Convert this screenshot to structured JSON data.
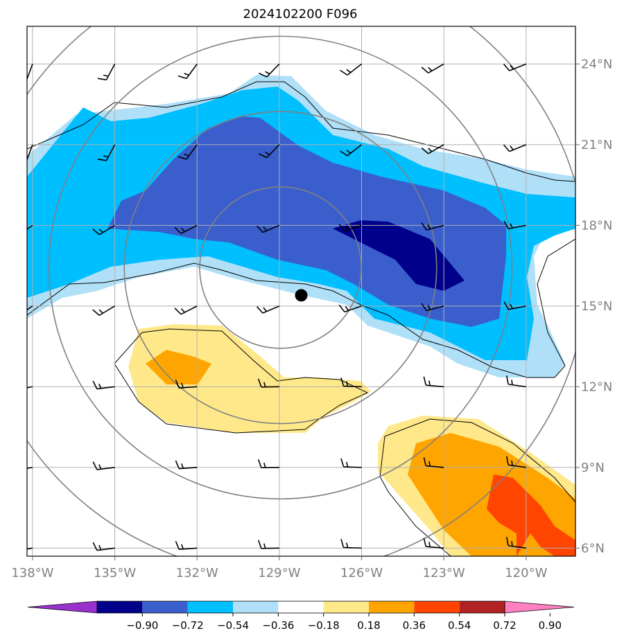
{
  "chart_data": {
    "type": "heatmap",
    "title": "2024102200 F096",
    "x_ticks": [
      "138°W",
      "135°W",
      "132°W",
      "129°W",
      "126°W",
      "123°W",
      "120°W"
    ],
    "y_ticks": [
      "24°N",
      "21°N",
      "18°N",
      "15°N",
      "12°N",
      "9°N",
      "6°N"
    ],
    "x_tick_values": [
      -138,
      -135,
      -132,
      -129,
      -126,
      -123,
      -120
    ],
    "y_tick_values": [
      24,
      21,
      18,
      15,
      12,
      9,
      6
    ],
    "xlim": [
      -138.2,
      -118.2
    ],
    "ylim": [
      5.7,
      25.4
    ],
    "grid": true,
    "center_marker": {
      "lon": -128.2,
      "lat": 15.4
    },
    "range_rings_deg": [
      3,
      5.8,
      8.6,
      11.4
    ],
    "colorbar": {
      "levels": [
        "−0.90",
        "−0.72",
        "−0.54",
        "−0.36",
        "−0.18",
        "0.18",
        "0.36",
        "0.54",
        "0.72",
        "0.90"
      ],
      "colors": [
        "#9932cc",
        "#00008b",
        "#3a5fcd",
        "#00bfff",
        "#b0e0f8",
        "#ffffff",
        "#ffe88a",
        "#ffa500",
        "#ff4500",
        "#b22222",
        "#ff80c0"
      ],
      "extend": "both"
    },
    "wind_barbs": {
      "lons": [
        -138,
        -135,
        -132,
        -129,
        -126,
        -123,
        -120
      ],
      "lats": [
        24,
        21,
        18,
        15,
        12,
        9,
        6
      ]
    }
  }
}
